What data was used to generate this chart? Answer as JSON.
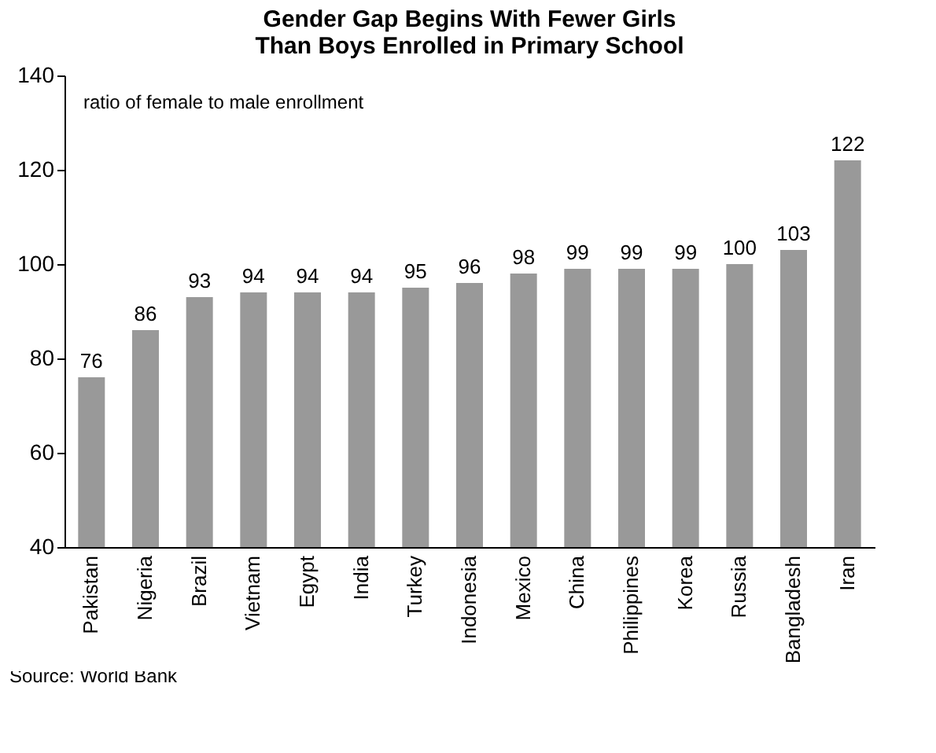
{
  "chart_data": {
    "type": "bar",
    "title": "Gender Gap Begins With Fewer Girls Than Boys Enrolled in Primary School",
    "categories": [
      "Pakistan",
      "Nigeria",
      "Brazil",
      "Vietnam",
      "Egypt",
      "India",
      "Turkey",
      "Indonesia",
      "Mexico",
      "China",
      "Philippines",
      "Korea",
      "Russia",
      "Bangladesh",
      "Iran"
    ],
    "values": [
      76,
      86,
      93,
      94,
      94,
      94,
      95,
      96,
      98,
      99,
      99,
      99,
      100,
      103,
      122
    ],
    "color": "#999999",
    "ylim": [
      40,
      140
    ],
    "yticks": [
      40,
      60,
      80,
      100,
      120,
      140
    ],
    "data_labels": true,
    "annotations": [
      "ratio of female to male enrollment",
      "Source: World Bank"
    ]
  }
}
